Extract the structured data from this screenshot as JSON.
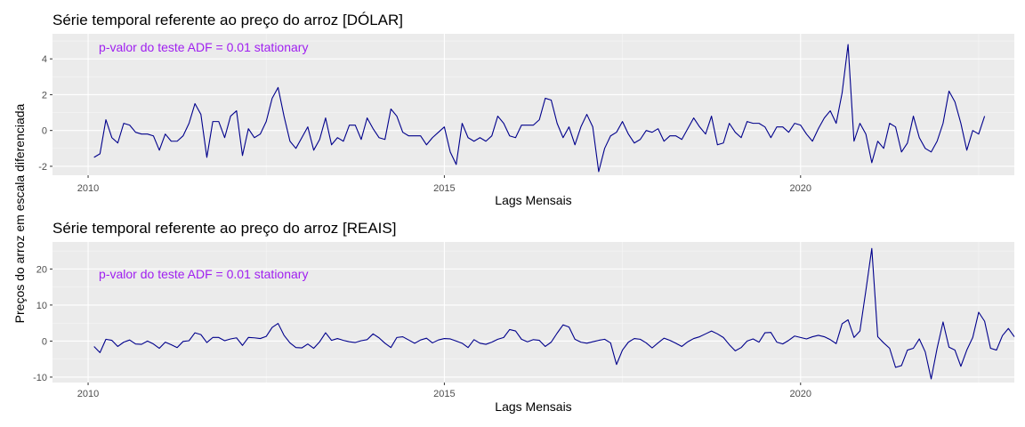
{
  "chart_data": [
    {
      "type": "line",
      "title": "Série temporal referente ao preço do arroz [DÓLAR]",
      "xlabel": "Lags Mensais",
      "ylabel": "Preços do arroz em escala diferenciada",
      "annotation": "p-valor do teste ADF =  0.01 stationary",
      "annotation_color": "#a020f0",
      "line_color": "#00008b",
      "panel_color": "#ebebeb",
      "grid": true,
      "xlim": [
        2009.5,
        2023.0
      ],
      "ylim": [
        -2.5,
        5.4
      ],
      "x_ticks": [
        2010,
        2015,
        2020
      ],
      "x_tick_labels": [
        "2010",
        "2015",
        "2020"
      ],
      "y_ticks": [
        -2,
        0,
        2,
        4
      ],
      "y_tick_labels": [
        "-2",
        "0",
        "2",
        "4"
      ],
      "x_start": 2010.083,
      "x_step": 0.0833333,
      "values": [
        -1.5,
        -1.3,
        0.6,
        -0.4,
        -0.7,
        0.4,
        0.3,
        -0.1,
        -0.2,
        -0.2,
        -0.3,
        -1.1,
        -0.2,
        -0.6,
        -0.6,
        -0.3,
        0.4,
        1.5,
        0.9,
        -1.5,
        0.5,
        0.5,
        -0.4,
        0.8,
        1.1,
        -1.4,
        0.1,
        -0.4,
        -0.2,
        0.5,
        1.8,
        2.4,
        0.8,
        -0.6,
        -1.0,
        -0.4,
        0.2,
        -1.1,
        -0.5,
        0.7,
        -0.8,
        -0.4,
        -0.6,
        0.3,
        0.3,
        -0.5,
        0.7,
        0.1,
        -0.4,
        -0.5,
        1.2,
        0.8,
        -0.1,
        -0.3,
        -0.3,
        -0.3,
        -0.8,
        -0.4,
        -0.1,
        0.2,
        -1.2,
        -1.9,
        0.4,
        -0.4,
        -0.6,
        -0.4,
        -0.6,
        -0.3,
        0.8,
        0.4,
        -0.3,
        -0.4,
        0.3,
        0.3,
        0.3,
        0.6,
        1.8,
        1.7,
        0.4,
        -0.4,
        0.2,
        -0.8,
        0.2,
        0.9,
        0.2,
        -2.3,
        -1.0,
        -0.3,
        -0.1,
        0.5,
        -0.2,
        -0.7,
        -0.5,
        0.0,
        -0.1,
        0.1,
        -0.6,
        -0.3,
        -0.3,
        -0.5,
        0.1,
        0.7,
        0.2,
        -0.2,
        0.8,
        -0.8,
        -0.7,
        0.4,
        -0.1,
        -0.4,
        0.5,
        0.4,
        0.4,
        0.2,
        -0.4,
        0.2,
        0.2,
        -0.1,
        0.4,
        0.3,
        -0.2,
        -0.6,
        0.1,
        0.7,
        1.1,
        0.4,
        2.1,
        4.8,
        -0.6,
        0.4,
        -0.2,
        -1.8,
        -0.6,
        -1.0,
        0.4,
        0.2,
        -1.2,
        -0.7,
        0.8,
        -0.4,
        -1.0,
        -1.2,
        -0.6,
        0.4,
        2.2,
        1.6,
        0.4,
        -1.1,
        0.0,
        -0.2,
        0.8
      ]
    },
    {
      "type": "line",
      "title": "Série temporal referente ao preço do arroz [REAIS]",
      "xlabel": "Lags Mensais",
      "ylabel": "Preços do arroz em escala diferenciada",
      "annotation": "p-valor do teste ADF =  0.01 stationary",
      "annotation_color": "#a020f0",
      "line_color": "#00008b",
      "panel_color": "#ebebeb",
      "grid": true,
      "xlim": [
        2009.5,
        2023.0
      ],
      "ylim": [
        -11.5,
        27.5
      ],
      "x_ticks": [
        2010,
        2015,
        2020
      ],
      "x_tick_labels": [
        "2010",
        "2015",
        "2020"
      ],
      "y_ticks": [
        -10,
        0,
        10,
        20
      ],
      "y_tick_labels": [
        "-10",
        "0",
        "10",
        "20"
      ],
      "x_start": 2010.083,
      "x_step": 0.0833333,
      "values": [
        -1.5,
        -3.2,
        0.5,
        0.2,
        -1.5,
        -0.3,
        0.3,
        -0.8,
        -0.9,
        0.0,
        -0.8,
        -2.0,
        -0.3,
        -1.0,
        -1.8,
        -0.1,
        0.1,
        2.3,
        1.8,
        -0.4,
        1.0,
        1.0,
        0.1,
        0.6,
        0.9,
        -1.2,
        1.0,
        0.9,
        0.7,
        1.3,
        3.8,
        4.9,
        1.6,
        -0.5,
        -1.8,
        -1.9,
        -0.8,
        -2.0,
        -0.2,
        2.3,
        0.2,
        0.7,
        0.2,
        -0.2,
        -0.4,
        0.1,
        0.4,
        2.0,
        0.9,
        -0.6,
        -1.8,
        1.0,
        1.2,
        0.3,
        -0.6,
        0.3,
        0.8,
        -0.5,
        0.3,
        0.7,
        0.6,
        0.0,
        -0.6,
        -1.8,
        0.4,
        -0.6,
        -0.9,
        -0.3,
        0.5,
        1.0,
        3.2,
        2.8,
        0.5,
        -0.2,
        0.4,
        0.2,
        -1.5,
        -0.3,
        2.2,
        4.5,
        3.9,
        0.5,
        -0.3,
        -0.6,
        -0.2,
        0.2,
        0.5,
        -0.5,
        -6.5,
        -2.5,
        -0.3,
        0.7,
        0.5,
        -0.5,
        -1.9,
        -0.5,
        0.8,
        0.2,
        -0.6,
        -1.5,
        -0.2,
        0.7,
        1.2,
        2.0,
        2.8,
        2.0,
        1.0,
        -1.0,
        -2.7,
        -1.8,
        0.0,
        0.6,
        -0.3,
        2.3,
        2.4,
        -0.3,
        -0.8,
        0.2,
        1.4,
        1.0,
        0.6,
        1.2,
        1.6,
        1.2,
        0.4,
        -0.7,
        4.8,
        5.9,
        1.0,
        2.8,
        14.0,
        25.7,
        1.2,
        -0.5,
        -2.0,
        -7.3,
        -6.8,
        -2.5,
        -2.0,
        0.6,
        -3.0,
        -10.5,
        -2.0,
        5.3,
        -1.7,
        -2.5,
        -7.0,
        -2.5,
        1.0,
        8.0,
        5.5,
        -2.0,
        -2.5,
        1.5,
        3.5,
        1.2
      ]
    }
  ]
}
